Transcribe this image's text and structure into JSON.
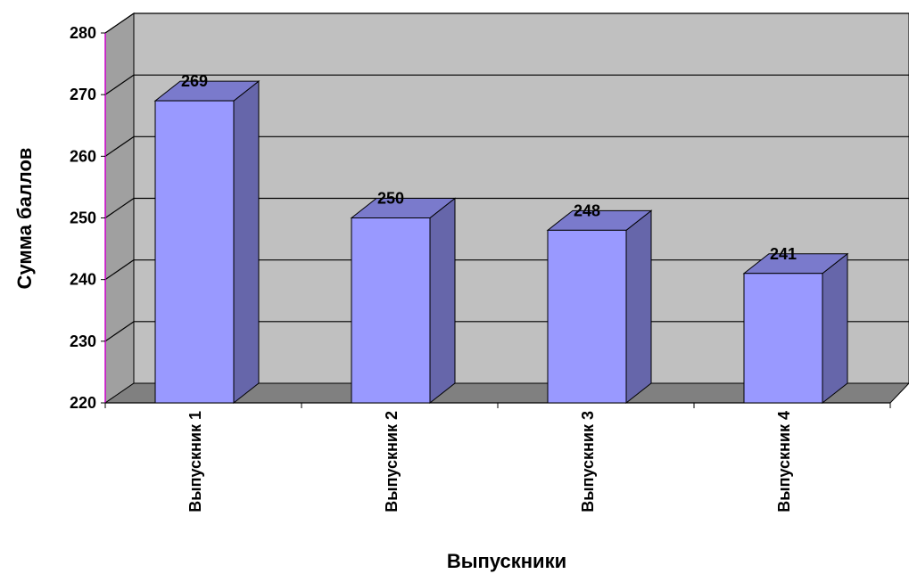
{
  "chart_data": {
    "type": "bar",
    "style": "3d-column",
    "categories": [
      "Выпускник 1",
      "Выпускник 2",
      "Выпускник 3",
      "Выпускник 4"
    ],
    "values": [
      269,
      250,
      248,
      241
    ],
    "data_labels": [
      "269",
      "250",
      "248",
      "241"
    ],
    "title": "",
    "xlabel": "Выпускники",
    "ylabel": "Сумма баллов",
    "ylim": [
      220,
      280
    ],
    "yticks": [
      220,
      230,
      240,
      250,
      260,
      270,
      280
    ],
    "ytick_labels": [
      "220",
      "230",
      "240",
      "250",
      "260",
      "270",
      "280"
    ],
    "grid": true,
    "legend": "none",
    "colors": {
      "bar_front": "#9999FF",
      "bar_side": "#6666AA",
      "bar_top": "#7A7ACC",
      "plot_back": "#C0C0C0",
      "plot_side": "#A0A0A0",
      "plot_floor": "#808080",
      "y_axis_line": "#CC00CC",
      "gridline": "#000000"
    }
  }
}
